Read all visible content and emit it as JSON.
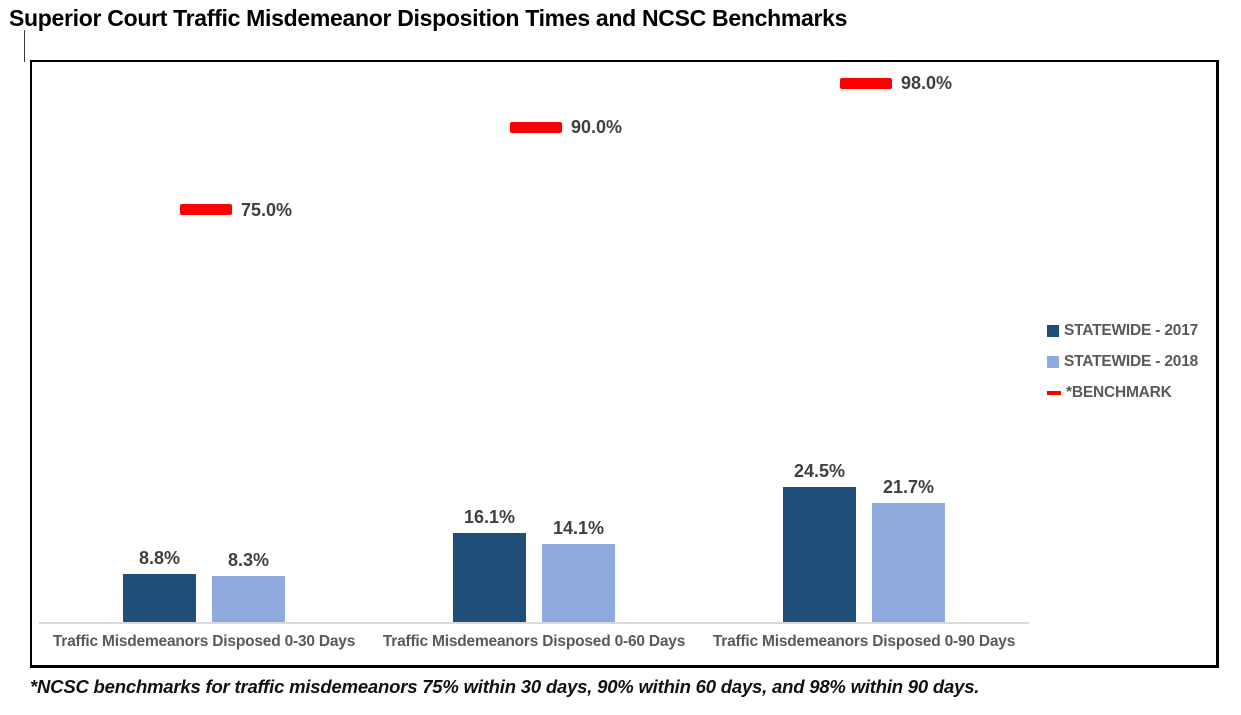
{
  "title": "Superior Court Traffic Misdemeanor Disposition Times and NCSC Benchmarks",
  "footnote": "*NCSC benchmarks for traffic misdemeanors 75% within 30 days, 90% within 60 days, and 98% within 90 days.",
  "colors": {
    "series_2017": "#1f4e79",
    "series_2018": "#8faadc",
    "benchmark": "#fe0000",
    "value_label": "#404040",
    "axis_label": "#595959",
    "axis_line": "#d9d9d9",
    "border": "#000000"
  },
  "legend": {
    "items": [
      {
        "label": "STATEWIDE - 2017",
        "swatch": "square",
        "color": "#1f4e79"
      },
      {
        "label": "STATEWIDE - 2018",
        "swatch": "square",
        "color": "#8faadc"
      },
      {
        "label": "*BENCHMARK",
        "swatch": "dash",
        "color": "#fe0000"
      }
    ]
  },
  "chart_data": {
    "type": "bar",
    "title": "Superior Court Traffic Misdemeanor Disposition Times and NCSC Benchmarks",
    "categories": [
      "Traffic Misdemeanors Disposed 0-30 Days",
      "Traffic Misdemeanors Disposed 0-60 Days",
      "Traffic Misdemeanors Disposed 0-90 Days"
    ],
    "series": [
      {
        "name": "STATEWIDE - 2017",
        "values": [
          8.8,
          16.1,
          24.5
        ],
        "labels": [
          "8.8%",
          "16.1%",
          "24.5%"
        ]
      },
      {
        "name": "STATEWIDE - 2018",
        "values": [
          8.3,
          14.1,
          21.7
        ],
        "labels": [
          "8.3%",
          "14.1%",
          "21.7%"
        ]
      }
    ],
    "benchmarks": {
      "name": "*BENCHMARK",
      "values": [
        75.0,
        90.0,
        98.0
      ],
      "labels": [
        "75.0%",
        "90.0%",
        "98.0%"
      ]
    },
    "xlabel": "",
    "ylabel": "",
    "unit": "%",
    "ylim": [
      0,
      100
    ],
    "grid": false,
    "y_axis_visible": false,
    "legend_position": "right"
  }
}
